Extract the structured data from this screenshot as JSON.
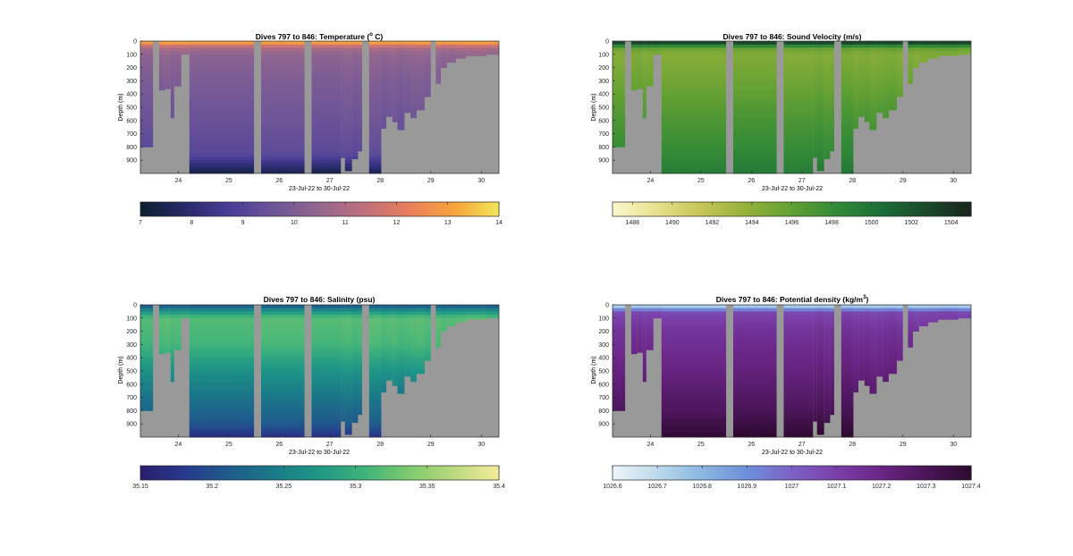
{
  "figure": {
    "panels": [
      {
        "id": "temperature",
        "title": "Dives 797 to 846: Temperature (",
        "title_sup": "o",
        "title_tail": " C)",
        "ylabel": "Depth (m)",
        "xlabel": "23-Jul-22 to 30-Jul-22"
      },
      {
        "id": "sound-velocity",
        "title": "Dives 797 to 846: Sound Velocity (m/s)",
        "ylabel": "Depth (m)",
        "xlabel": "23-Jul-22 to 30-Jul-22"
      },
      {
        "id": "salinity",
        "title": "Dives 797 to 846: Salinity (psu)",
        "ylabel": "Depth (m)",
        "xlabel": "23-Jul-22 to 30-Jul-22"
      },
      {
        "id": "potential-density",
        "title": "Dives 797 to 846: Potential density (kg/m",
        "title_sup": "3",
        "title_tail": ")",
        "ylabel": "Depth (m)",
        "xlabel": "23-Jul-22 to 30-Jul-22"
      }
    ]
  },
  "chart_data": [
    {
      "type": "heatmap",
      "title": "Dives 797 to 846: Temperature (o C)",
      "xlabel": "23-Jul-22 to 30-Jul-22",
      "ylabel": "Depth (m)",
      "xlim": [
        23.25,
        30.35
      ],
      "ylim": [
        0,
        1000
      ],
      "y_reversed": true,
      "xticks": [
        24,
        25,
        26,
        27,
        28,
        29,
        30
      ],
      "yticks": [
        0,
        100,
        200,
        300,
        400,
        500,
        600,
        700,
        800,
        900
      ],
      "colorbar": {
        "range": [
          7,
          14
        ],
        "ticks": [
          7,
          8,
          9,
          10,
          11,
          12,
          13,
          14
        ],
        "colormap": [
          "#0b1f2e",
          "#282a6a",
          "#4a3e98",
          "#6e5598",
          "#94678f",
          "#c06f7c",
          "#e87f5c",
          "#f7a33c",
          "#f2e75a"
        ]
      },
      "profile": [
        {
          "depth": 0,
          "value": 13.8
        },
        {
          "depth": 20,
          "value": 12.5
        },
        {
          "depth": 50,
          "value": 11.0
        },
        {
          "depth": 100,
          "value": 10.4
        },
        {
          "depth": 300,
          "value": 10.0
        },
        {
          "depth": 600,
          "value": 9.6
        },
        {
          "depth": 850,
          "value": 9.2
        },
        {
          "depth": 950,
          "value": 8.0
        },
        {
          "depth": 1000,
          "value": 7.4
        }
      ]
    },
    {
      "type": "heatmap",
      "title": "Dives 797 to 846: Sound Velocity (m/s)",
      "xlabel": "23-Jul-22 to 30-Jul-22",
      "ylabel": "Depth (m)",
      "xlim": [
        23.25,
        30.35
      ],
      "ylim": [
        0,
        1000
      ],
      "y_reversed": true,
      "xticks": [
        24,
        25,
        26,
        27,
        28,
        29,
        30
      ],
      "yticks": [
        0,
        100,
        200,
        300,
        400,
        500,
        600,
        700,
        800,
        900
      ],
      "colorbar": {
        "range": [
          1487,
          1505
        ],
        "ticks": [
          1488,
          1490,
          1492,
          1494,
          1496,
          1498,
          1500,
          1502,
          1504
        ],
        "colormap": [
          "#fbf7cf",
          "#e7e08c",
          "#c4c455",
          "#93b13a",
          "#62a033",
          "#328a37",
          "#1b6e36",
          "#1a4a2c",
          "#18251c"
        ]
      },
      "profile": [
        {
          "depth": 0,
          "value": 1504.5
        },
        {
          "depth": 20,
          "value": 1502.0
        },
        {
          "depth": 50,
          "value": 1496.0
        },
        {
          "depth": 100,
          "value": 1494.5
        },
        {
          "depth": 300,
          "value": 1495.5
        },
        {
          "depth": 600,
          "value": 1497.2
        },
        {
          "depth": 850,
          "value": 1498.4
        },
        {
          "depth": 1000,
          "value": 1499.5
        }
      ]
    },
    {
      "type": "heatmap",
      "title": "Dives 797 to 846: Salinity (psu)",
      "xlabel": "23-Jul-22 to 30-Jul-22",
      "ylabel": "Depth (m)",
      "xlim": [
        23.25,
        30.35
      ],
      "ylim": [
        0,
        1000
      ],
      "y_reversed": true,
      "xticks": [
        24,
        25,
        26,
        27,
        28,
        29,
        30
      ],
      "yticks": [
        0,
        100,
        200,
        300,
        400,
        500,
        600,
        700,
        800,
        900
      ],
      "colorbar": {
        "range": [
          35.15,
          35.4
        ],
        "ticks": [
          35.15,
          35.2,
          35.25,
          35.3,
          35.35,
          35.4
        ],
        "colormap": [
          "#2a1e6e",
          "#273a8d",
          "#1f5c8c",
          "#1a7a88",
          "#1f9886",
          "#3fb37a",
          "#7dca6e",
          "#bcd97d",
          "#f3ec9b"
        ]
      },
      "profile": [
        {
          "depth": 0,
          "value": 35.2
        },
        {
          "depth": 40,
          "value": 35.26
        },
        {
          "depth": 100,
          "value": 35.32
        },
        {
          "depth": 300,
          "value": 35.31
        },
        {
          "depth": 500,
          "value": 35.27
        },
        {
          "depth": 700,
          "value": 35.24
        },
        {
          "depth": 900,
          "value": 35.21
        },
        {
          "depth": 1000,
          "value": 35.17
        }
      ]
    },
    {
      "type": "heatmap",
      "title": "Dives 797 to 846: Potential density (kg/m3)",
      "xlabel": "23-Jul-22 to 30-Jul-22",
      "ylabel": "Depth (m)",
      "xlim": [
        23.25,
        30.35
      ],
      "ylim": [
        0,
        1000
      ],
      "y_reversed": true,
      "xticks": [
        24,
        25,
        26,
        27,
        28,
        29,
        30
      ],
      "yticks": [
        0,
        100,
        200,
        300,
        400,
        500,
        600,
        700,
        800,
        900
      ],
      "colorbar": {
        "range": [
          1026.6,
          1027.4
        ],
        "ticks": [
          1026.6,
          1026.7,
          1026.8,
          1026.9,
          1027,
          1027.1,
          1027.2,
          1027.3,
          1027.4
        ],
        "colormap": [
          "#eef6fa",
          "#bcd9ea",
          "#8ab7e2",
          "#6e8fdb",
          "#7b62c7",
          "#7a3fa8",
          "#6a2585",
          "#4b1559",
          "#2d0a30"
        ]
      },
      "profile": [
        {
          "depth": 0,
          "value": 1026.65
        },
        {
          "depth": 25,
          "value": 1026.85
        },
        {
          "depth": 60,
          "value": 1027.08
        },
        {
          "depth": 200,
          "value": 1027.15
        },
        {
          "depth": 500,
          "value": 1027.22
        },
        {
          "depth": 800,
          "value": 1027.3
        },
        {
          "depth": 1000,
          "value": 1027.4
        }
      ]
    }
  ],
  "survey": {
    "missing_color": "#999999",
    "columns": [
      {
        "x0": 23.25,
        "x1": 23.5,
        "bottom": 800
      },
      {
        "x0": 23.5,
        "x1": 23.62,
        "bottom": 0
      },
      {
        "x0": 23.62,
        "x1": 23.74,
        "bottom": 370
      },
      {
        "x0": 23.74,
        "x1": 23.85,
        "bottom": 360
      },
      {
        "x0": 23.85,
        "x1": 23.92,
        "bottom": 580
      },
      {
        "x0": 23.92,
        "x1": 24.06,
        "bottom": 340
      },
      {
        "x0": 24.06,
        "x1": 24.22,
        "bottom": 100
      },
      {
        "x0": 24.22,
        "x1": 25.5,
        "bottom": 1000
      },
      {
        "x0": 25.5,
        "x1": 25.64,
        "bottom": 0
      },
      {
        "x0": 25.64,
        "x1": 26.5,
        "bottom": 1000
      },
      {
        "x0": 26.5,
        "x1": 26.64,
        "bottom": 0
      },
      {
        "x0": 26.64,
        "x1": 27.22,
        "bottom": 1000
      },
      {
        "x0": 27.22,
        "x1": 27.3,
        "bottom": 880
      },
      {
        "x0": 27.3,
        "x1": 27.44,
        "bottom": 980
      },
      {
        "x0": 27.44,
        "x1": 27.56,
        "bottom": 890
      },
      {
        "x0": 27.56,
        "x1": 27.64,
        "bottom": 830
      },
      {
        "x0": 27.64,
        "x1": 27.78,
        "bottom": 0
      },
      {
        "x0": 27.78,
        "x1": 28.02,
        "bottom": 1000
      },
      {
        "x0": 28.02,
        "x1": 28.12,
        "bottom": 660
      },
      {
        "x0": 28.12,
        "x1": 28.24,
        "bottom": 570
      },
      {
        "x0": 28.24,
        "x1": 28.34,
        "bottom": 610
      },
      {
        "x0": 28.34,
        "x1": 28.48,
        "bottom": 670
      },
      {
        "x0": 28.48,
        "x1": 28.6,
        "bottom": 540
      },
      {
        "x0": 28.6,
        "x1": 28.72,
        "bottom": 580
      },
      {
        "x0": 28.72,
        "x1": 28.88,
        "bottom": 520
      },
      {
        "x0": 28.88,
        "x1": 29.0,
        "bottom": 420
      },
      {
        "x0": 29.0,
        "x1": 29.1,
        "bottom": 0
      },
      {
        "x0": 29.1,
        "x1": 29.2,
        "bottom": 320
      },
      {
        "x0": 29.2,
        "x1": 29.32,
        "bottom": 200
      },
      {
        "x0": 29.32,
        "x1": 29.5,
        "bottom": 160
      },
      {
        "x0": 29.5,
        "x1": 29.7,
        "bottom": 130
      },
      {
        "x0": 29.7,
        "x1": 30.1,
        "bottom": 110
      },
      {
        "x0": 30.1,
        "x1": 30.35,
        "bottom": 100
      }
    ]
  }
}
